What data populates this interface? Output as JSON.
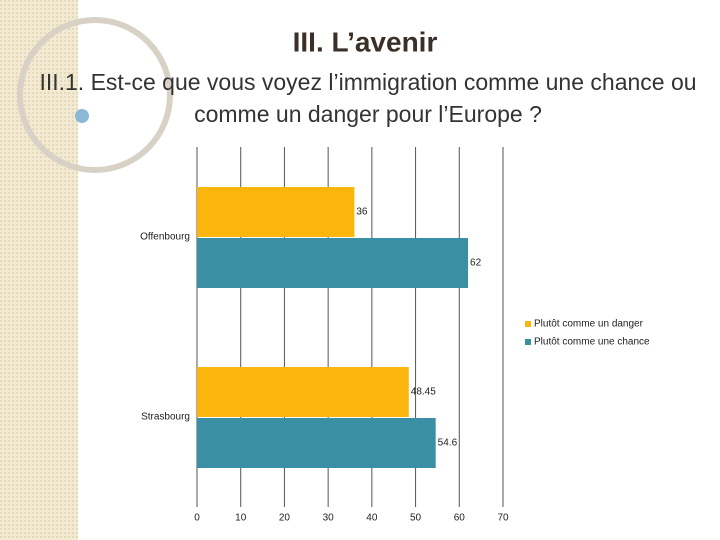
{
  "header": {
    "title": "III. L’avenir",
    "subtitle": "III.1. Est-ce que vous voyez l’immigration comme une chance ou comme un danger pour l’Europe ?"
  },
  "chart_data": {
    "type": "bar",
    "orientation": "horizontal",
    "categories": [
      "Offenbourg",
      null,
      "Strasbourg"
    ],
    "series": [
      {
        "name": "Plutôt comme un danger",
        "color": "#fbb60d",
        "values": [
          36,
          null,
          48.45
        ]
      },
      {
        "name": "Plutôt comme une chance",
        "color": "#3a8fa5",
        "values": [
          62,
          null,
          54.6
        ]
      }
    ],
    "xlim": [
      0,
      70
    ],
    "xticks": [
      0,
      10,
      20,
      30,
      40,
      50,
      60,
      70
    ],
    "grid": true,
    "legend": "right"
  }
}
